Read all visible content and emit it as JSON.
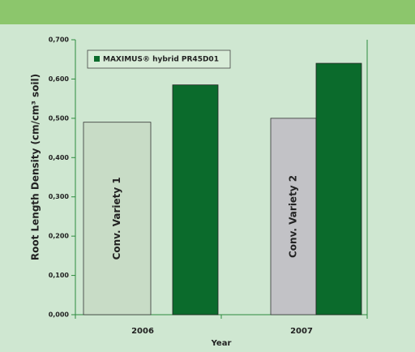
{
  "chart_data": {
    "type": "bar",
    "categories": [
      "2006",
      "2007"
    ],
    "x_label": "Year",
    "y_label": "Root Length Density (cm/cm³ soil)",
    "series": [
      {
        "name": "MAXIMUS® hybrid PR45D01",
        "color": "#0b6b2c",
        "values": [
          0.585,
          0.64
        ]
      }
    ],
    "conventional": {
      "labels": [
        "Conv. Variety 1",
        "Conv. Variety 2"
      ],
      "colors": [
        "#c8dcc6",
        "#c2c2c6"
      ],
      "values": [
        0.49,
        0.5
      ]
    },
    "ylim": [
      0,
      0.7
    ],
    "yticks": [
      {
        "value": 0,
        "label": "0,000"
      },
      {
        "value": 0.1,
        "label": "0,100"
      },
      {
        "value": 0.2,
        "label": "0,200"
      },
      {
        "value": 0.3,
        "label": "0,300"
      },
      {
        "value": 0.4,
        "label": "0,400"
      },
      {
        "value": 0.5,
        "label": "0,500"
      },
      {
        "value": 0.6,
        "label": "0,600"
      },
      {
        "value": 0.7,
        "label": "0,700"
      }
    ],
    "legend": "top-left"
  }
}
